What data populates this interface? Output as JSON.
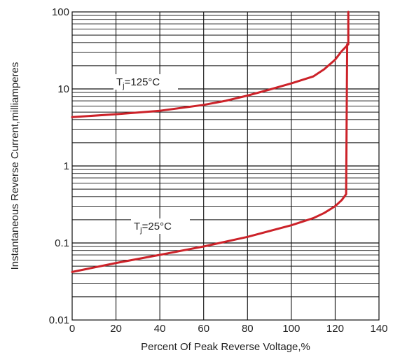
{
  "chart_data": {
    "type": "line",
    "title": "",
    "xlabel": "Percent Of Peak Reverse Voltage,%",
    "ylabel": "Instantaneous Reverse Current,milliamperes",
    "xlim": [
      0,
      140
    ],
    "ylim": [
      0.01,
      100
    ],
    "yscale": "log",
    "grid": true,
    "x_ticks": [
      "0",
      "20",
      "40",
      "60",
      "80",
      "100",
      "120",
      "140"
    ],
    "y_ticks": [
      "0.01",
      "0.1",
      "1",
      "10",
      "100"
    ],
    "series": [
      {
        "label_main": "T",
        "label_sub": "j",
        "label_rest": "=125°C",
        "color": "#cc2229",
        "points": [
          [
            0,
            4.3
          ],
          [
            20,
            4.7
          ],
          [
            40,
            5.2
          ],
          [
            60,
            6.2
          ],
          [
            70,
            7.0
          ],
          [
            80,
            8.2
          ],
          [
            90,
            9.8
          ],
          [
            100,
            11.8
          ],
          [
            110,
            14.5
          ],
          [
            115,
            18
          ],
          [
            120,
            24
          ],
          [
            123,
            31
          ],
          [
            126,
            38
          ],
          [
            126,
            100
          ]
        ]
      },
      {
        "label_main": "T",
        "label_sub": "j",
        "label_rest": "=25°C",
        "color": "#cc2229",
        "points": [
          [
            0,
            0.042
          ],
          [
            20,
            0.055
          ],
          [
            40,
            0.07
          ],
          [
            60,
            0.09
          ],
          [
            80,
            0.12
          ],
          [
            100,
            0.17
          ],
          [
            110,
            0.21
          ],
          [
            115,
            0.245
          ],
          [
            120,
            0.3
          ],
          [
            123,
            0.36
          ],
          [
            125,
            0.43
          ],
          [
            125.5,
            38
          ]
        ]
      }
    ]
  }
}
